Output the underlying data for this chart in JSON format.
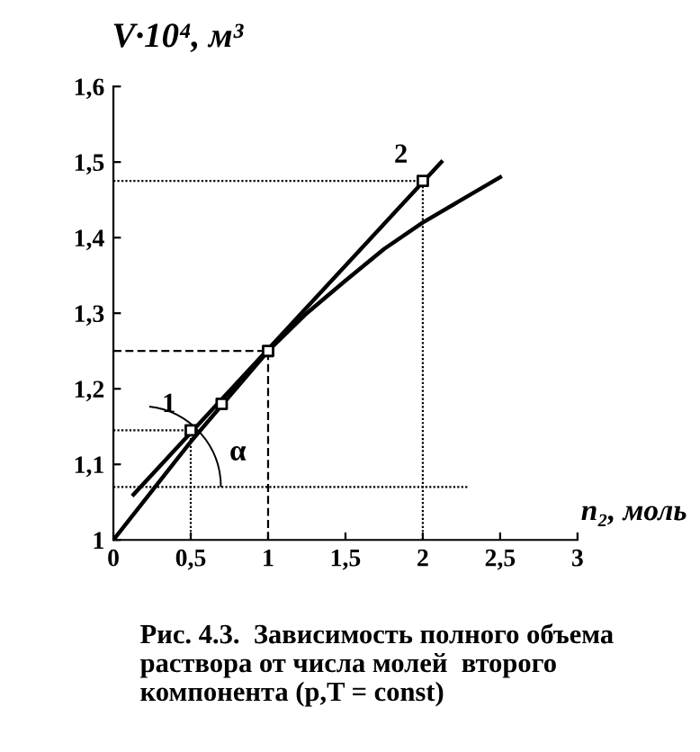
{
  "chart_data": {
    "type": "line",
    "annotations": [
      {
        "text": "1",
        "x": 0.5,
        "y": 1.145
      },
      {
        "text": "2",
        "x": 2,
        "y": 1.475
      },
      "α",
      "Рис. 4.3.  Зависимость полного объема раствора от числа молей  второго компонента (p,T = const)"
    ],
    "xlabel": "n₂, моль",
    "ylabel": "V·10⁴, м³",
    "xlim": [
      0,
      3
    ],
    "ylim": [
      1,
      1.6
    ],
    "xticks": [
      0,
      {
        "value": 0.5,
        "label": "0,5"
      },
      1,
      {
        "value": 1.5,
        "label": "1,5"
      },
      2,
      {
        "value": 2.5,
        "label": "2,5"
      },
      3
    ],
    "yticks": [
      1,
      {
        "value": 1.1,
        "label": "1,1"
      },
      {
        "value": 1.2,
        "label": "1,2"
      },
      {
        "value": 1.3,
        "label": "1,3"
      },
      {
        "value": 1.4,
        "label": "1,4"
      },
      {
        "value": 1.5,
        "label": "1,5"
      },
      {
        "value": 1.6,
        "label": "1,6"
      }
    ],
    "grid": false,
    "legend": false,
    "ref_lines": [
      {
        "axis": "x",
        "value": 2,
        "line_style": "dotted"
      },
      {
        "axis": "x",
        "value": 1,
        "line_style": "dashed"
      },
      {
        "axis": "x",
        "value": 0.5,
        "line_style": "dotted"
      }
    ],
    "series": [
      {
        "color": "#000000",
        "line_style": "solid",
        "x": [
          0,
          0.25,
          0.5,
          0.75,
          1,
          1.25,
          1.5,
          1.75,
          2,
          2.25,
          2.5
        ],
        "values": [
          1,
          1.065,
          1.13,
          1.19,
          1.25,
          1.3,
          1.343,
          1.385,
          1.42,
          1.45,
          1.48
        ]
      },
      {
        "color": "#000000",
        "line_style": "solid",
        "x": [
          0.13,
          2.12
        ],
        "values": [
          1.06,
          1.5
        ]
      },
      {
        "color": "#000000",
        "line_style": "dotted",
        "x": [
          0,
          2
        ],
        "values": [
          1.475,
          1.475
        ]
      },
      {
        "color": "#000000",
        "line_style": "dashed",
        "x": [
          0,
          1
        ],
        "values": [
          1.25,
          1.25
        ]
      },
      {
        "color": "#000000",
        "line_style": "dotted",
        "x": [
          0,
          0.5
        ],
        "values": [
          1.145,
          1.145
        ]
      },
      {
        "color": "#000000",
        "line_style": "dotted",
        "x": [
          0,
          2.3
        ],
        "values": [
          1.07,
          1.07
        ]
      },
      {
        "type": "scatter",
        "color": "#000000",
        "marker": "square",
        "x": [
          0.5,
          0.7,
          1,
          2
        ],
        "values": [
          1.145,
          1.18,
          1.25,
          1.475
        ]
      }
    ]
  }
}
